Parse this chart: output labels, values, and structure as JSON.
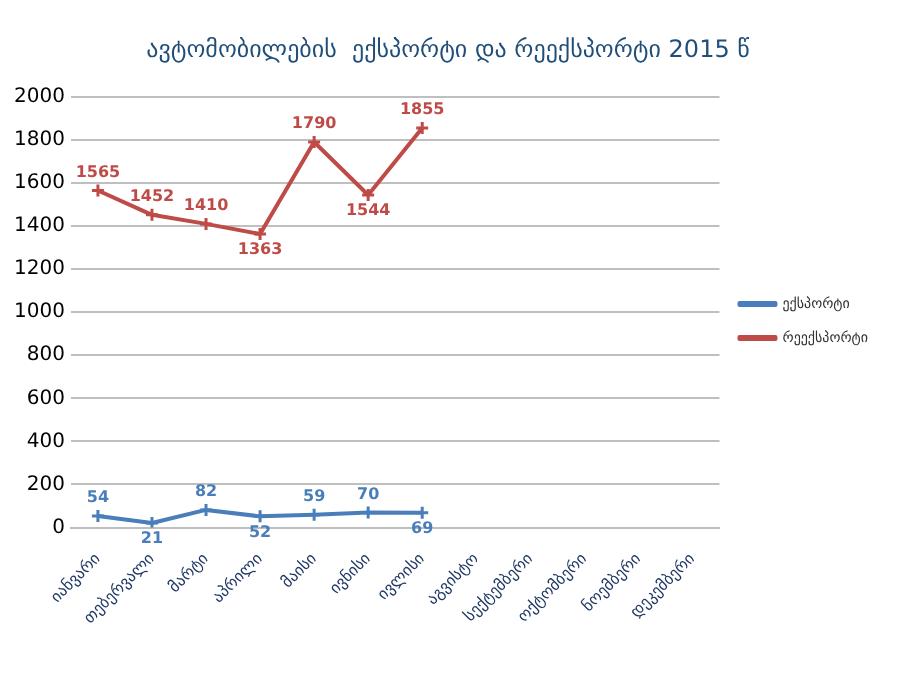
{
  "chart_data": {
    "type": "line",
    "title": "ავტომობილების  ექსპორტი და რეექსპორტი 2015 წ",
    "categories": [
      "იანვარი",
      "თებერვალი",
      "მარტი",
      "აპრილი",
      "მაისი",
      "ივნისი",
      "ივლისი",
      "აგვისტო",
      "სექტემბერი",
      "ოქტომბერი",
      "ნოემბერი",
      "დეკემბერი"
    ],
    "series": [
      {
        "name": "ექსპორტი",
        "color": "#4a7ebb",
        "values": [
          54,
          21,
          82,
          52,
          59,
          70,
          69,
          null,
          null,
          null,
          null,
          null
        ]
      },
      {
        "name": "რეექსპორტი",
        "color": "#be4b48",
        "values": [
          1565,
          1452,
          1410,
          1363,
          1790,
          1544,
          1855,
          null,
          null,
          null,
          null,
          null
        ]
      }
    ],
    "ylim": [
      0,
      2000
    ],
    "yticks": [
      0,
      200,
      400,
      600,
      800,
      1000,
      1200,
      1400,
      1600,
      1800,
      2000
    ],
    "grid": "y",
    "legend": "right",
    "data_labels": true,
    "marker": "cross",
    "line_style": "solid"
  }
}
